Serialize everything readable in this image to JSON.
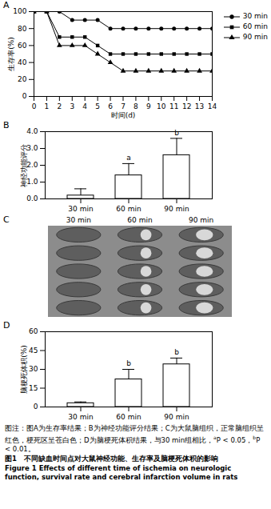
{
  "chart_data": [
    {
      "type": "line",
      "title": "A",
      "x_label": "时间(d)",
      "y_label": "生存率(%)",
      "x": [
        0,
        1,
        2,
        3,
        4,
        5,
        6,
        7,
        8,
        9,
        10,
        11,
        12,
        13,
        14
      ],
      "series": [
        {
          "name": "30 min",
          "color": "#000000",
          "marker": "circle",
          "line_style": "solid",
          "values": [
            100,
            100,
            100,
            90,
            90,
            90,
            80,
            80,
            80,
            80,
            80,
            80,
            80,
            80,
            80
          ]
        },
        {
          "name": "60 min",
          "color": "#000000",
          "marker": "square",
          "line_style": "solid",
          "values": [
            100,
            100,
            70,
            70,
            70,
            60,
            50,
            50,
            50,
            50,
            50,
            50,
            50,
            50,
            50
          ]
        },
        {
          "name": "90 min",
          "color": "#000000",
          "marker": "triangle",
          "line_style": "solid",
          "values": [
            100,
            100,
            60,
            60,
            60,
            50,
            40,
            30,
            30,
            30,
            30,
            30,
            30,
            30,
            30
          ]
        }
      ],
      "xlim": [
        0,
        14
      ],
      "xticks": [
        0,
        1,
        2,
        3,
        4,
        5,
        6,
        7,
        8,
        9,
        10,
        11,
        12,
        13,
        14
      ],
      "ylim": [
        0,
        100
      ],
      "yticks": [
        0,
        20,
        40,
        60,
        80,
        100
      ],
      "legend": "upper right"
    },
    {
      "type": "bar",
      "title": "B",
      "y_label": "神经功能评分",
      "categories": [
        "30 min",
        "60 min",
        "90 min"
      ],
      "values": [
        0.2,
        1.4,
        2.6
      ],
      "errors": [
        0.4,
        0.7,
        1.0
      ],
      "color": "#ffffff",
      "annotations": [
        {
          "category": "60 min",
          "text": "a"
        },
        {
          "category": "90 min",
          "text": "b"
        }
      ],
      "ylim": [
        0,
        4
      ],
      "yticks": [
        0,
        1,
        2,
        3,
        4
      ]
    },
    {
      "type": "bar",
      "title": "D",
      "y_label": "脑梗死体积(%)",
      "categories": [
        "30 min",
        "60 min",
        "90 min"
      ],
      "values": [
        3,
        22,
        34
      ],
      "errors": [
        1,
        8,
        5
      ],
      "color": "#ffffff",
      "annotations": [
        {
          "category": "60 min",
          "text": "b"
        },
        {
          "category": "90 min",
          "text": "b"
        }
      ],
      "ylim": [
        0,
        60
      ],
      "yticks": [
        0,
        15,
        30,
        45,
        60
      ]
    }
  ],
  "image_panel": {
    "title": "C",
    "column_labels": [
      "30 min",
      "60 min",
      "90 min"
    ]
  },
  "caption": {
    "note_parts": [
      {
        "text": "图注：图A为生存率结果；B为神经功能评分结果；C为大鼠脑组织，正常脑组织呈红色，梗死区呈苍白色；D为脑梗死体积结果，与30 min组相比，"
      },
      {
        "sup": "a"
      },
      {
        "text": "P < 0.05，"
      },
      {
        "sup": "b"
      },
      {
        "text": "P < 0.01。"
      }
    ],
    "title_cn": "图1　不同缺血时间点对大鼠神经功能、生存率及脑梗死体积的影响",
    "title_en": "Figure 1   Effects of different time of ischemia on neurologic function, survival rate and cerebral infarction volume in rats"
  }
}
